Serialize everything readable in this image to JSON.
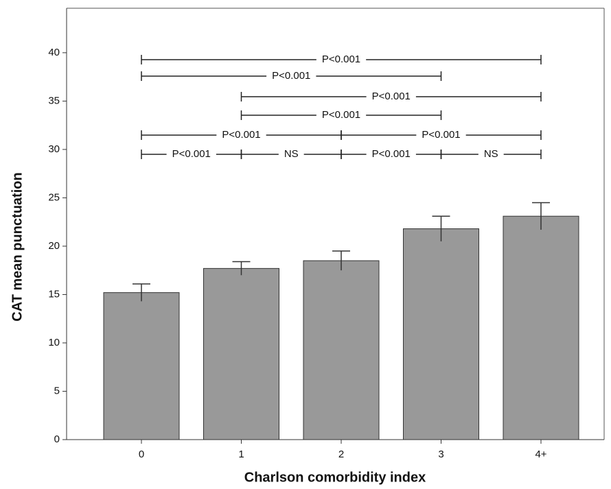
{
  "chart_data": {
    "type": "bar",
    "x_label": "Charlson comorbidity index",
    "y_label": "CAT mean punctuation",
    "categories": [
      "0",
      "1",
      "2",
      "3",
      "4+"
    ],
    "values": [
      15.2,
      17.7,
      18.5,
      21.8,
      23.1
    ],
    "errors": [
      0.9,
      0.7,
      1.0,
      1.3,
      1.4
    ],
    "color": "#999999",
    "ylim": [
      0,
      44.6
    ],
    "yticks": [
      0,
      5,
      10,
      15,
      20,
      25,
      30,
      35,
      40
    ],
    "annotations": [
      "P<0.001",
      "P<0.001",
      "P<0.001",
      "P<0.001",
      "P<0.001",
      "P<0.001",
      "P<0.001",
      "NS",
      "P<0.001",
      "NS"
    ]
  }
}
